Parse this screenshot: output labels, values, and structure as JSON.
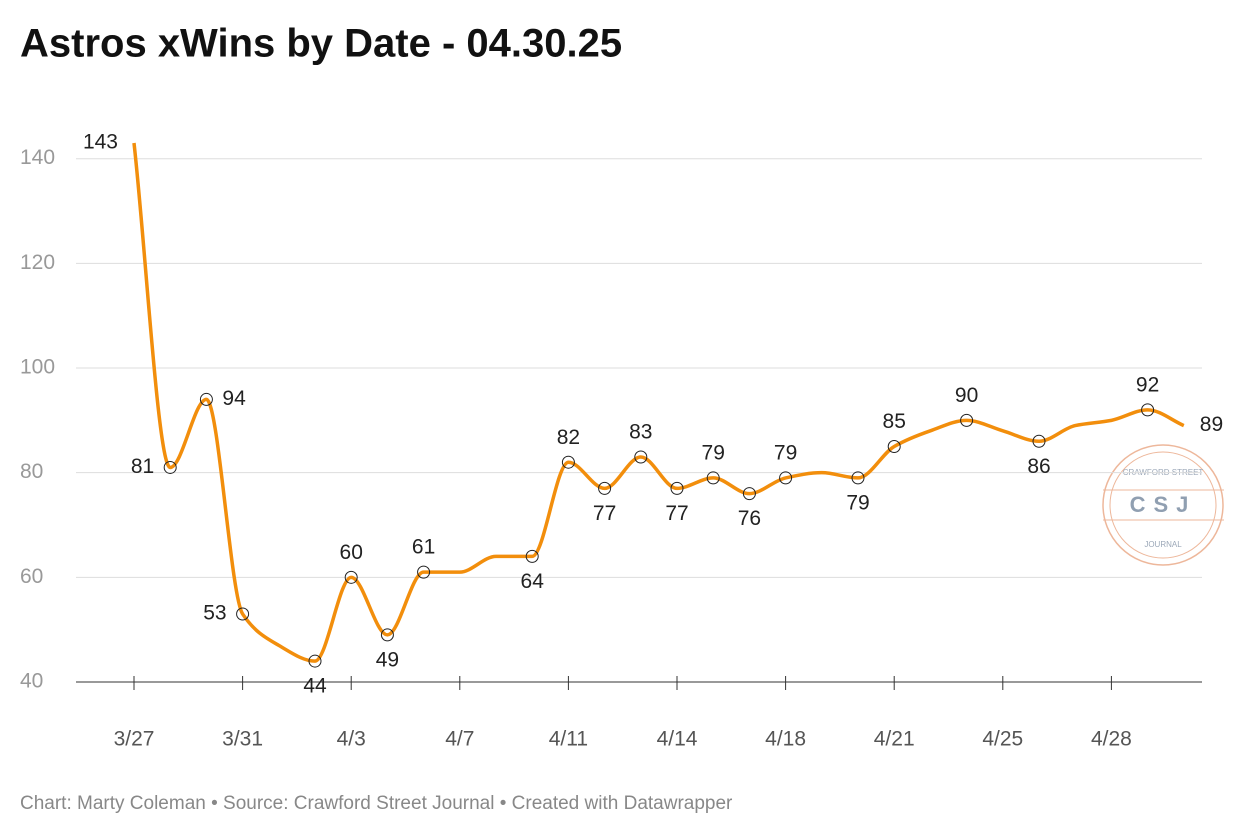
{
  "chart_data": {
    "type": "line",
    "title": "Astros xWins by Date - 04.30.25",
    "footer": "Chart: Marty Coleman • Source: Crawford Street Journal • Created with Datawrapper",
    "categories": [
      "3/27",
      null,
      null,
      "3/31",
      null,
      null,
      "4/3",
      null,
      null,
      "4/7",
      null,
      null,
      "4/11",
      null,
      null,
      "4/14",
      null,
      null,
      "4/18",
      null,
      null,
      "4/21",
      null,
      null,
      "4/25",
      null,
      null,
      "4/28",
      null,
      null
    ],
    "series": [
      {
        "name": "xWins",
        "color": "#f28e0c",
        "values": [
          143,
          81,
          94,
          53,
          47,
          44,
          60,
          49,
          61,
          61,
          64,
          64,
          82,
          77,
          83,
          77,
          79,
          76,
          79,
          80,
          79,
          85,
          88,
          90,
          88,
          86,
          89,
          90,
          92,
          89
        ]
      }
    ],
    "labeled_points": [
      0,
      1,
      2,
      3,
      5,
      6,
      7,
      8,
      11,
      12,
      13,
      14,
      15,
      16,
      17,
      18,
      20,
      21,
      23,
      25,
      28,
      29
    ],
    "marker_points": [
      1,
      2,
      3,
      5,
      6,
      7,
      8,
      11,
      12,
      13,
      14,
      15,
      16,
      17,
      18,
      20,
      21,
      23,
      25,
      28
    ],
    "ylim": [
      40,
      143
    ],
    "yticks": [
      40,
      60,
      80,
      100,
      120,
      140
    ],
    "grid": true
  },
  "logo": {
    "top": "CRAWFORD STREET",
    "center": "CSJ",
    "bottom": "JOURNAL"
  }
}
